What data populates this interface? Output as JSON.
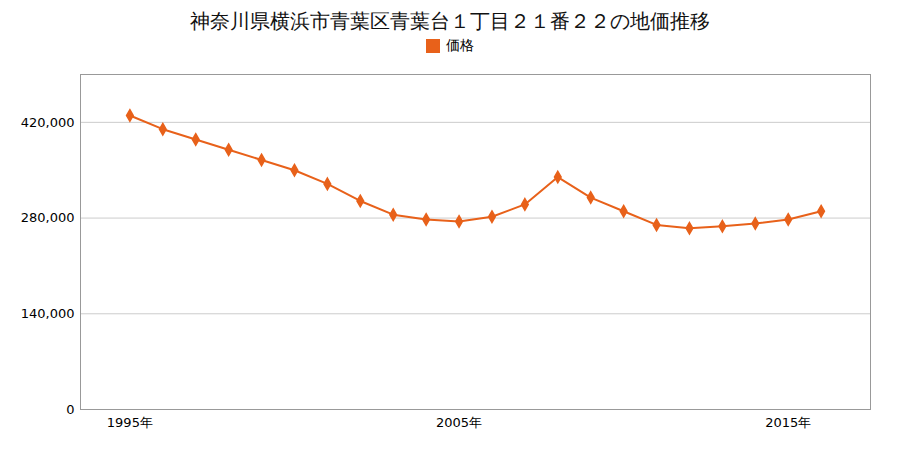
{
  "chart_data": {
    "type": "line",
    "title": "神奈川県横浜市青葉区青葉台１丁目２１番２２の地価推移",
    "x": [
      1995,
      1996,
      1997,
      1998,
      1999,
      2000,
      2001,
      2002,
      2003,
      2004,
      2005,
      2006,
      2007,
      2008,
      2009,
      2010,
      2011,
      2012,
      2013,
      2014,
      2015,
      2016
    ],
    "series": [
      {
        "name": "価格",
        "color": "#e8611a",
        "marker": "diamond",
        "values": [
          430000,
          410000,
          395000,
          380000,
          365000,
          350000,
          330000,
          305000,
          285000,
          278000,
          275000,
          282000,
          300000,
          340000,
          310000,
          290000,
          270000,
          265000,
          268000,
          272000,
          278000,
          290000
        ]
      }
    ],
    "xlim": [
      1993.5,
      2017.5
    ],
    "xticks": [
      {
        "value": 1995,
        "label": "1995年"
      },
      {
        "value": 2005,
        "label": "2005年"
      },
      {
        "value": 2015,
        "label": "2015年"
      }
    ],
    "ylim": [
      0,
      490000
    ],
    "yticks": [
      0,
      {
        "value": 140000,
        "label": "140,000"
      },
      {
        "value": 280000,
        "label": "280,000"
      },
      {
        "value": 420000,
        "label": "420,000"
      }
    ],
    "grid": "y",
    "legend": "top"
  }
}
